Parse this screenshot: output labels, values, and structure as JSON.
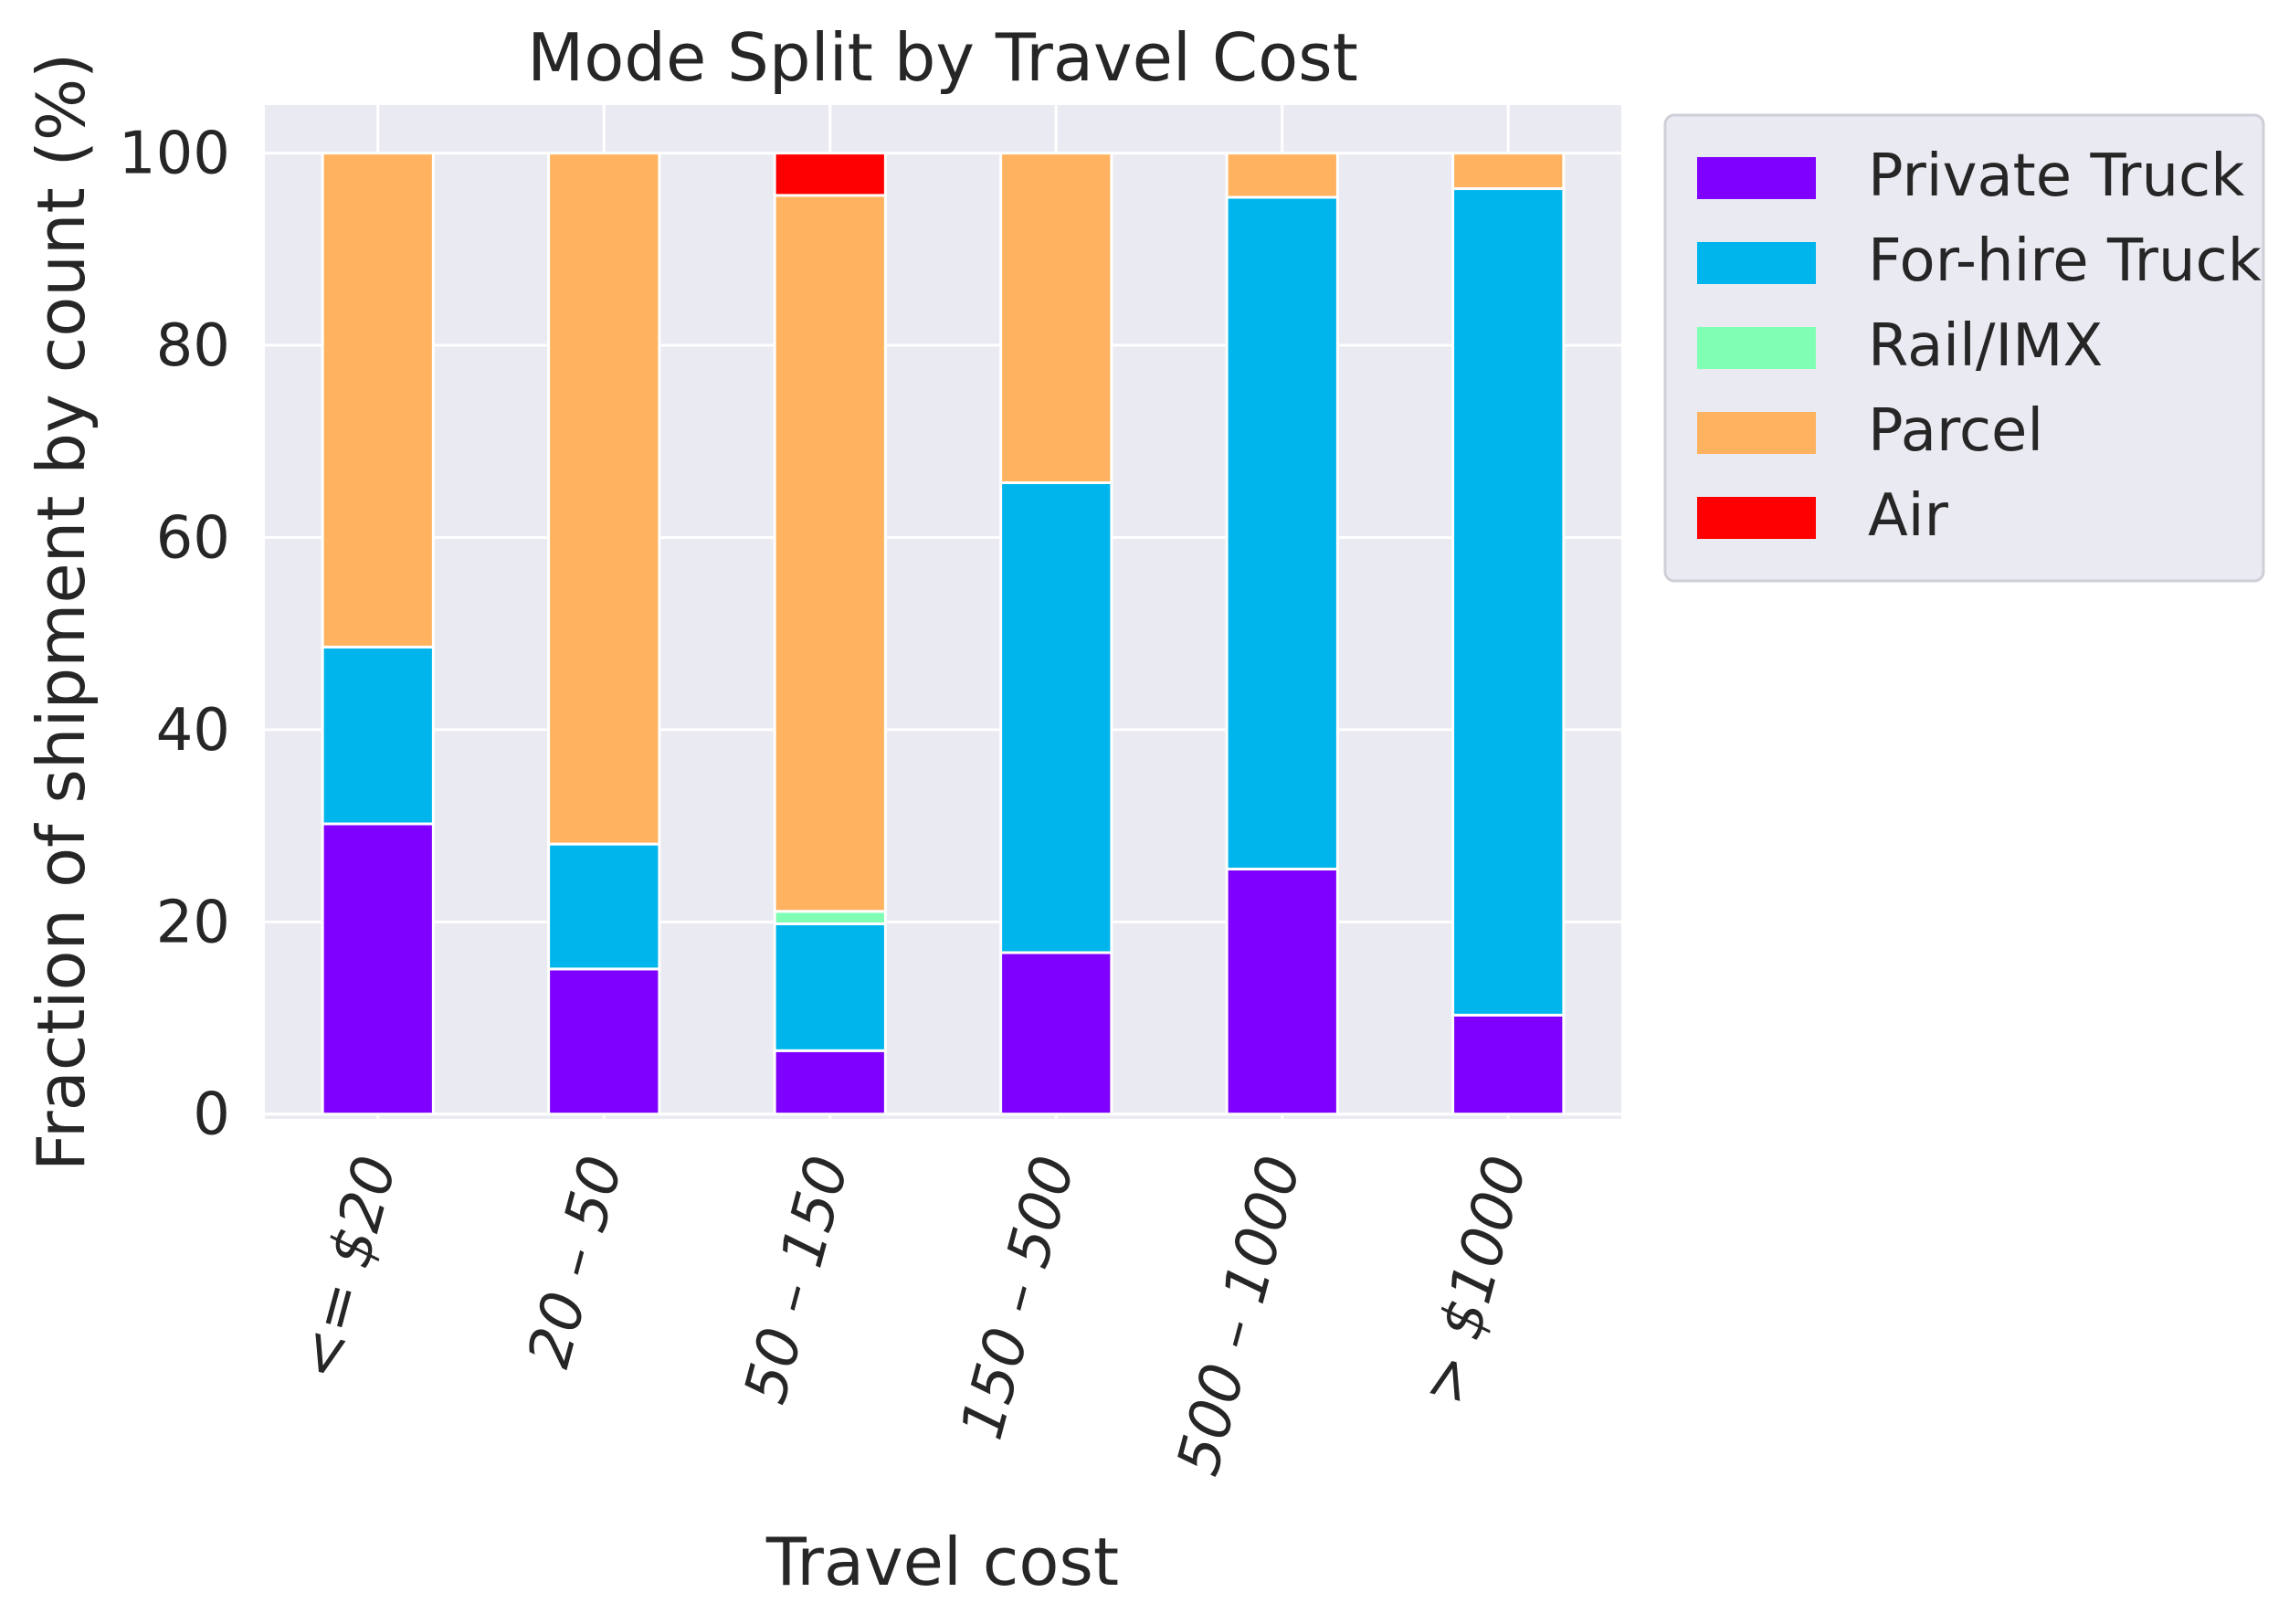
{
  "chart_data": {
    "type": "bar",
    "stacked": true,
    "title": "Mode Split by Travel Cost",
    "xlabel": "Travel cost",
    "ylabel": "Fraction of shipment by count (%)",
    "ylim": [
      -0.5,
      105
    ],
    "yticks": [
      0,
      20,
      40,
      60,
      80,
      100
    ],
    "grid": true,
    "legend_position": "outside-upper-right",
    "categories": [
      "<= $20",
      "20 – 50",
      "50 – 150",
      "150 – 500",
      "500 – 1000",
      "> $1000"
    ],
    "series": [
      {
        "name": "Private Truck",
        "color": "#8000ff",
        "values": [
          30.2,
          15.1,
          6.6,
          16.8,
          25.5,
          10.3
        ]
      },
      {
        "name": "For-hire Truck",
        "color": "#00b5eb",
        "values": [
          18.4,
          13.0,
          13.2,
          48.9,
          69.9,
          86.0
        ]
      },
      {
        "name": "Rail/IMX",
        "color": "#80ffb4",
        "values": [
          0.0,
          0.0,
          1.3,
          0.0,
          0.0,
          0.0
        ]
      },
      {
        "name": "Parcel",
        "color": "#ffb360",
        "values": [
          51.4,
          71.9,
          74.5,
          34.3,
          4.6,
          3.7
        ]
      },
      {
        "name": "Air",
        "color": "#ff0000",
        "values": [
          0.0,
          0.0,
          4.4,
          0.0,
          0.0,
          0.0
        ]
      }
    ],
    "background_color": "#eaeaf2",
    "grid_color": "#ffffff"
  }
}
